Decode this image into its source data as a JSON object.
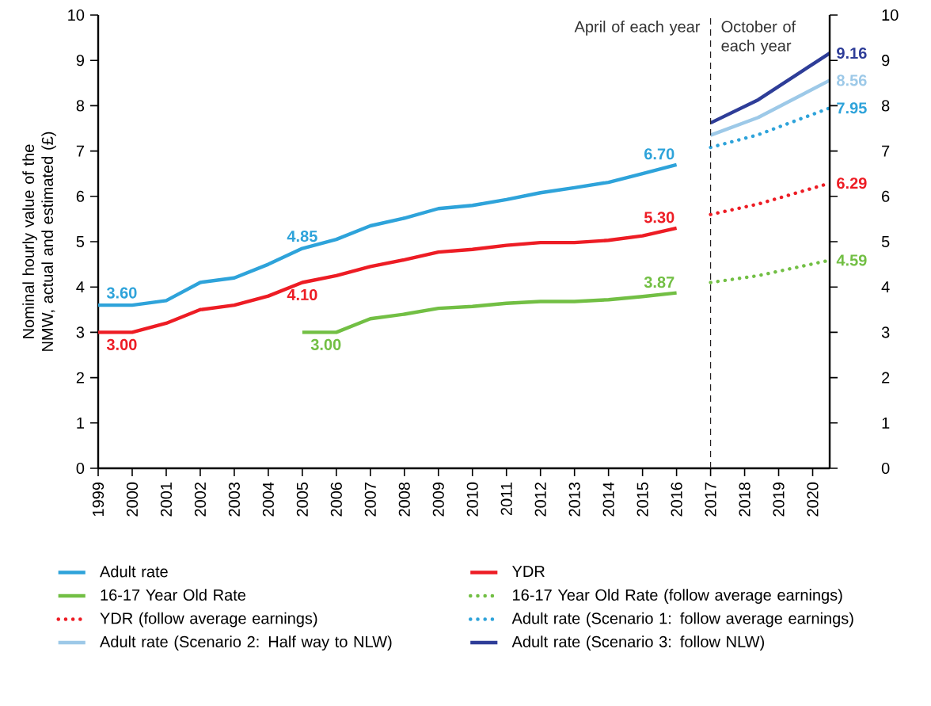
{
  "chart_data": {
    "type": "line",
    "ylabel": "Nominal hourly value of the NMW, actual and estimated (£)",
    "xlim": [
      1999,
      2020.5
    ],
    "xticks": [
      1999,
      2000,
      2001,
      2002,
      2003,
      2004,
      2005,
      2006,
      2007,
      2008,
      2009,
      2010,
      2011,
      2012,
      2013,
      2014,
      2015,
      2016,
      2017,
      2018,
      2019,
      2020
    ],
    "ylim": [
      0,
      10
    ],
    "yticks": [
      0,
      1,
      2,
      3,
      4,
      5,
      6,
      7,
      8,
      9,
      10
    ],
    "y2lim": [
      0,
      10
    ],
    "y2ticks": [
      0,
      1,
      2,
      3,
      4,
      5,
      6,
      7,
      8,
      9,
      10
    ],
    "grid": false,
    "legend": "bottom",
    "marker": "none",
    "ref_lines": [
      {
        "axis": "x",
        "value": 2017,
        "line_style": "dashed",
        "color": "#231f20"
      }
    ],
    "annotations": [
      {
        "text": "April of each year",
        "x": 2017,
        "y": 10
      },
      {
        "text": "October of each year",
        "x": 2017,
        "y": 10
      }
    ],
    "series": [
      {
        "name": "Adult rate",
        "color": "#2ea3da",
        "line_style": "solid",
        "x": [
          1999,
          2000,
          2001,
          2002,
          2003,
          2004,
          2005,
          2006,
          2007,
          2008,
          2009,
          2010,
          2011,
          2012,
          2013,
          2014,
          2015,
          2016
        ],
        "values": [
          3.6,
          3.6,
          3.7,
          4.1,
          4.2,
          4.5,
          4.85,
          5.05,
          5.35,
          5.52,
          5.73,
          5.8,
          5.93,
          6.08,
          6.19,
          6.31,
          6.5,
          6.7
        ],
        "value_labels": [
          "3.60",
          null,
          null,
          null,
          null,
          null,
          "4.85",
          null,
          null,
          null,
          null,
          null,
          null,
          null,
          null,
          null,
          null,
          "6.70"
        ]
      },
      {
        "name": "YDR",
        "color": "#ed1c24",
        "line_style": "solid",
        "x": [
          1999,
          2000,
          2001,
          2002,
          2003,
          2004,
          2005,
          2006,
          2007,
          2008,
          2009,
          2010,
          2011,
          2012,
          2013,
          2014,
          2015,
          2016
        ],
        "values": [
          3.0,
          3.0,
          3.2,
          3.5,
          3.6,
          3.8,
          4.1,
          4.25,
          4.45,
          4.6,
          4.77,
          4.83,
          4.92,
          4.98,
          4.98,
          5.03,
          5.13,
          5.3
        ],
        "value_labels": [
          "3.00",
          null,
          null,
          null,
          null,
          null,
          "4.10",
          null,
          null,
          null,
          null,
          null,
          null,
          null,
          null,
          null,
          null,
          "5.30"
        ]
      },
      {
        "name": "16-17 Year Old Rate",
        "color": "#72bf44",
        "line_style": "solid",
        "x": [
          2005,
          2006,
          2007,
          2008,
          2009,
          2010,
          2011,
          2012,
          2013,
          2014,
          2015,
          2016
        ],
        "values": [
          3.0,
          3.0,
          3.3,
          3.4,
          3.53,
          3.57,
          3.64,
          3.68,
          3.68,
          3.72,
          3.79,
          3.87
        ],
        "value_labels": [
          "3.00",
          null,
          null,
          null,
          null,
          null,
          null,
          null,
          null,
          null,
          null,
          "3.87"
        ]
      },
      {
        "name": "16-17 Year Old Rate (follow average earnings)",
        "color": "#72bf44",
        "line_style": "dotted",
        "x": [
          2017,
          2018.4,
          2020.5
        ],
        "values": [
          4.1,
          4.25,
          4.59
        ],
        "value_labels": [
          null,
          null,
          "4.59"
        ]
      },
      {
        "name": "YDR (follow average earnings)",
        "color": "#ed1c24",
        "line_style": "dotted",
        "x": [
          2017,
          2018.4,
          2020.5
        ],
        "values": [
          5.6,
          5.83,
          6.29
        ],
        "value_labels": [
          null,
          null,
          "6.29"
        ]
      },
      {
        "name": "Adult rate (Scenario 1: follow average earnings)",
        "color": "#2ea3da",
        "line_style": "dotted",
        "x": [
          2017,
          2018.4,
          2020.5
        ],
        "values": [
          7.08,
          7.36,
          7.95
        ],
        "value_labels": [
          null,
          null,
          "7.95"
        ]
      },
      {
        "name": "Adult rate (Scenario 2: Half way to NLW)",
        "color": "#9dc9e8",
        "line_style": "solid",
        "x": [
          2017,
          2018.4,
          2020.5
        ],
        "values": [
          7.35,
          7.74,
          8.56
        ],
        "value_labels": [
          null,
          null,
          "8.56"
        ]
      },
      {
        "name": "Adult rate (Scenario 3: follow NLW)",
        "color": "#2e3d98",
        "line_style": "solid",
        "x": [
          2017,
          2018.4,
          2020.5
        ],
        "values": [
          7.62,
          8.13,
          9.16
        ],
        "value_labels": [
          null,
          null,
          "9.16"
        ]
      }
    ]
  }
}
